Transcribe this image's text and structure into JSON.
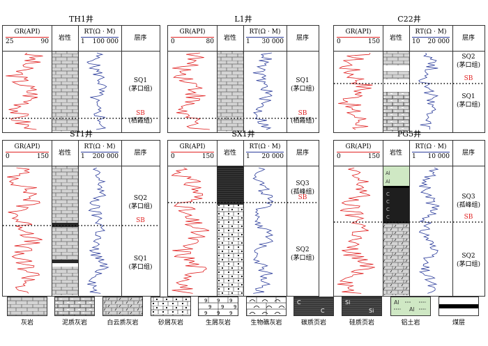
{
  "header_labels": {
    "lithology": "岩性",
    "sequence": "层序",
    "gr": "GR(API)",
    "rt": "RT(Ω · M)"
  },
  "wells": [
    {
      "name": "TH1井",
      "gr_min": "25",
      "gr_max": "90",
      "rt_min": "1",
      "rt_max": "100 000",
      "zones": [
        {
          "label": "SQ1\n(茅口组)"
        },
        {
          "label": "(栖霞组)"
        }
      ],
      "sb": "SB"
    },
    {
      "name": "L1井",
      "gr_min": "0",
      "gr_max": "80",
      "rt_min": "1",
      "rt_max": "30 000",
      "zones": [
        {
          "label": "SQ1\n(茅口组)"
        },
        {
          "label": "(栖霞组)"
        }
      ],
      "sb": "SB"
    },
    {
      "name": "C22井",
      "gr_min": "0",
      "gr_max": "150",
      "rt_min": "10",
      "rt_max": "20 000",
      "zones": [
        {
          "label": "SQ2\n(茅口组)"
        },
        {
          "label": "SQ1\n(茅口组)"
        }
      ],
      "sb": "SB"
    },
    {
      "name": "ST1井",
      "gr_min": "0",
      "gr_max": "150",
      "rt_min": "1",
      "rt_max": "200 000",
      "zones": [
        {
          "label": "SQ2\n(茅口组)"
        },
        {
          "label": "SQ1\n(茅口组)"
        }
      ],
      "sb": "SB"
    },
    {
      "name": "SX1井",
      "gr_min": "0",
      "gr_max": "150",
      "rt_min": "1",
      "rt_max": "20 000",
      "zones": [
        {
          "label": "SQ3\n(孤峰组)"
        },
        {
          "label": "SQ2\n(茅口组)"
        }
      ],
      "sb": "SB"
    },
    {
      "name": "PG5井",
      "gr_min": "0",
      "gr_max": "150",
      "rt_min": "1",
      "rt_max": "10 000",
      "zones": [
        {
          "label": "SQ3\n(孤峰组)"
        },
        {
          "label": "SQ2\n(茅口组)"
        }
      ],
      "sb": "SB"
    }
  ],
  "legend": [
    {
      "key": "limestone",
      "label": "灰岩"
    },
    {
      "key": "muddy",
      "label": "泥质灰岩"
    },
    {
      "key": "dolomitic",
      "label": "白云质灰岩"
    },
    {
      "key": "sandy",
      "label": "砂屑灰岩"
    },
    {
      "key": "bioclastic",
      "label": "生屑灰岩"
    },
    {
      "key": "reef",
      "label": "生物礁灰岩"
    },
    {
      "key": "carbshale",
      "label": "碳质页岩"
    },
    {
      "key": "siliceous",
      "label": "硅质页岩"
    },
    {
      "key": "bauxite",
      "label": "铝土岩"
    },
    {
      "key": "coal",
      "label": "煤层"
    }
  ],
  "lith_marks": {
    "carb": "C",
    "si": "Si",
    "al": "Al"
  },
  "colors": {
    "gr": "#e02020",
    "rt": "#2a3b9a",
    "lith_fill": "#d4d4d4",
    "dark": "#555555",
    "bauxite": "#cfe8c4"
  }
}
